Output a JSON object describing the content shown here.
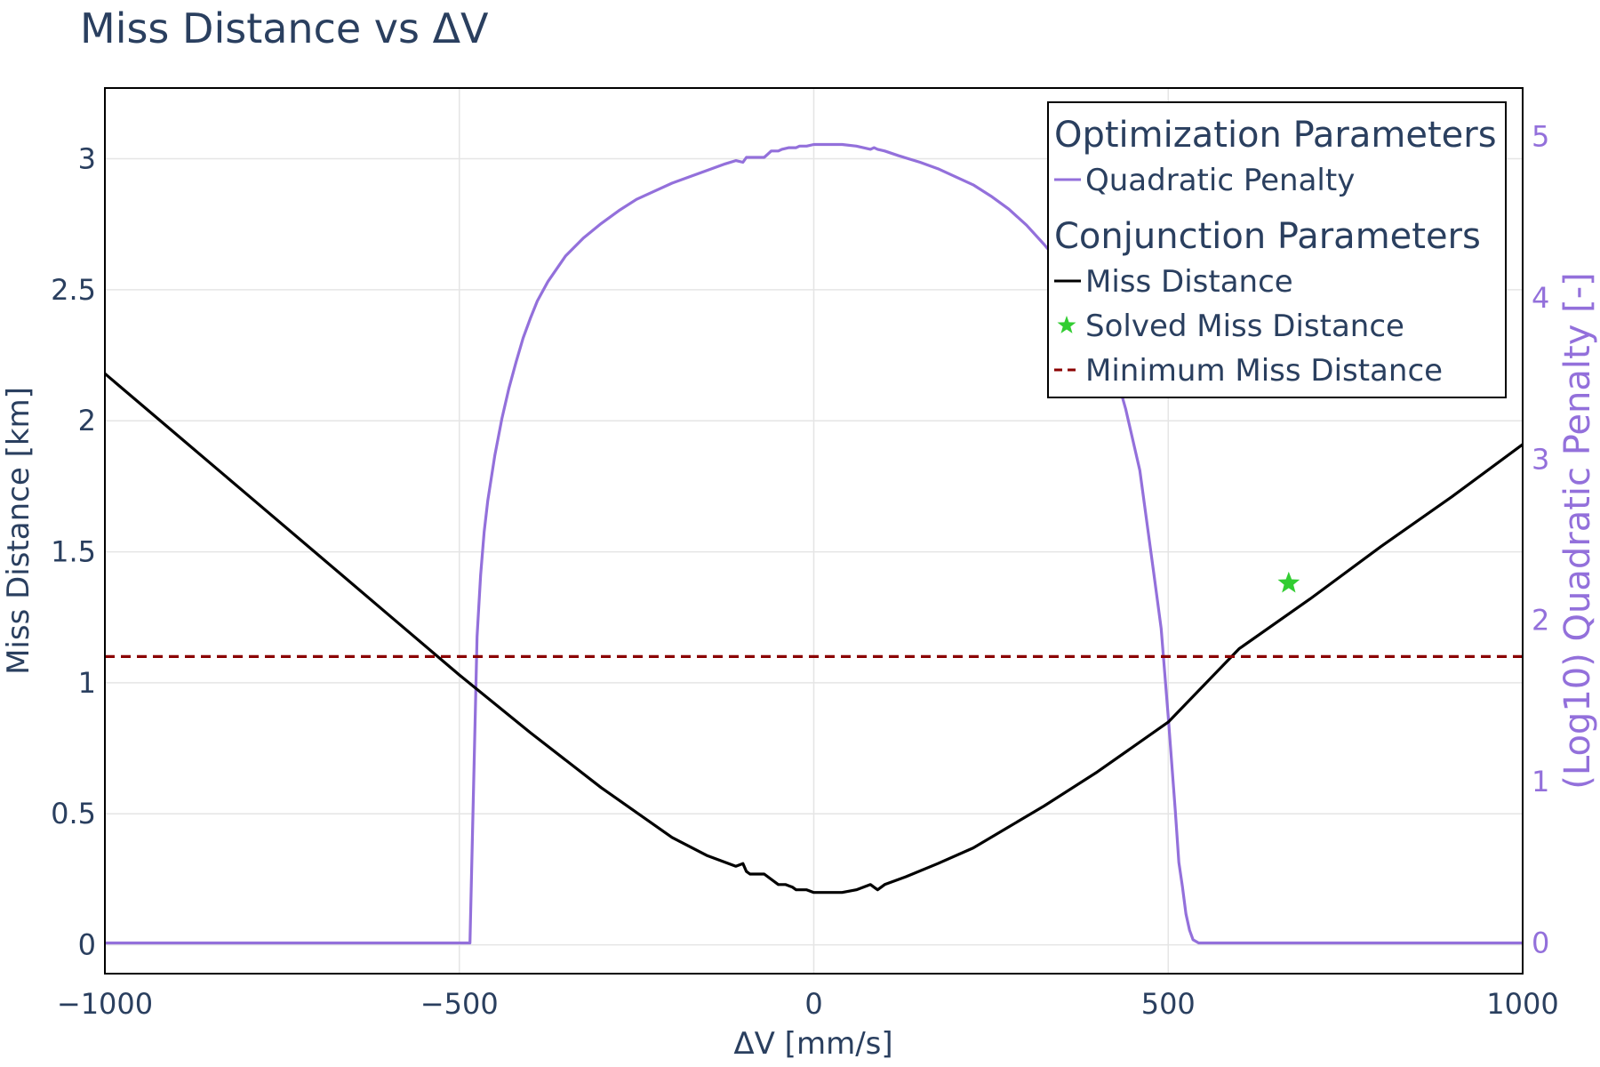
{
  "chart_data": {
    "type": "line",
    "title": "Miss Distance vs ΔV",
    "xlabel": "ΔV [mm/s]",
    "ylabel": "Miss Distance [km]",
    "y2label": "(Log10) Quadratic Penalty [-]",
    "xlim": [
      -1000,
      1000
    ],
    "ylim": [
      -0.11,
      3.27
    ],
    "y2lim": [
      -0.19,
      5.3
    ],
    "grid": true,
    "legend_position": "top-right",
    "x_ticks": [
      -1000,
      -500,
      0,
      500,
      1000
    ],
    "x_tick_labels": [
      "−1000",
      "−500",
      "0",
      "500",
      "1000"
    ],
    "y_ticks": [
      0,
      0.5,
      1,
      1.5,
      2,
      2.5,
      3
    ],
    "y_tick_labels": [
      "0",
      "0.5",
      "1",
      "1.5",
      "2",
      "2.5",
      "3"
    ],
    "y2_ticks": [
      0,
      1,
      2,
      3,
      4,
      5
    ],
    "y2_tick_labels": [
      "0",
      "1",
      "2",
      "3",
      "4",
      "5"
    ],
    "legend": {
      "groups": [
        {
          "title": "Optimization Parameters",
          "items": [
            {
              "label": "Quadratic Penalty",
              "symbol": "line",
              "color": "#9370DB"
            }
          ]
        },
        {
          "title": "Conjunction Parameters",
          "items": [
            {
              "label": "Miss Distance",
              "symbol": "line",
              "color": "#000000"
            },
            {
              "label": "Solved Miss Distance",
              "symbol": "star",
              "color": "#32CD32"
            },
            {
              "label": "Minimum Miss Distance",
              "symbol": "dash",
              "color": "#8B0000"
            }
          ]
        }
      ]
    },
    "series": [
      {
        "name": "Quadratic Penalty",
        "axis": "y2",
        "color": "#9370DB",
        "x": [
          -1000,
          -485,
          -480,
          -475,
          -470,
          -465,
          -460,
          -450,
          -440,
          -430,
          -420,
          -410,
          -400,
          -390,
          -375,
          -350,
          -325,
          -300,
          -275,
          -250,
          -225,
          -200,
          -175,
          -150,
          -125,
          -110,
          -100,
          -95,
          -90,
          -70,
          -65,
          -60,
          -50,
          -45,
          -35,
          -25,
          -20,
          -10,
          0,
          20,
          40,
          60,
          80,
          85,
          90,
          100,
          120,
          150,
          175,
          200,
          225,
          250,
          275,
          300,
          325,
          350,
          375,
          400,
          420,
          440,
          460,
          480,
          490,
          500,
          510,
          515,
          520,
          525,
          530,
          535,
          543,
          1000
        ],
        "y": [
          0,
          0,
          0.95,
          1.9,
          2.28,
          2.55,
          2.74,
          3.02,
          3.25,
          3.44,
          3.6,
          3.75,
          3.87,
          3.98,
          4.1,
          4.26,
          4.37,
          4.46,
          4.54,
          4.61,
          4.66,
          4.71,
          4.75,
          4.79,
          4.83,
          4.85,
          4.84,
          4.87,
          4.87,
          4.87,
          4.89,
          4.91,
          4.91,
          4.92,
          4.93,
          4.93,
          4.94,
          4.94,
          4.95,
          4.95,
          4.95,
          4.94,
          4.92,
          4.93,
          4.92,
          4.91,
          4.88,
          4.84,
          4.8,
          4.75,
          4.7,
          4.63,
          4.55,
          4.45,
          4.33,
          4.2,
          4.05,
          3.85,
          3.62,
          3.31,
          2.93,
          2.28,
          1.95,
          1.4,
          0.82,
          0.5,
          0.35,
          0.18,
          0.08,
          0.02,
          0,
          0
        ]
      },
      {
        "name": "Miss Distance",
        "axis": "y",
        "color": "#000000",
        "x": [
          -1000,
          -900,
          -800,
          -700,
          -600,
          -500,
          -400,
          -300,
          -200,
          -150,
          -110,
          -100,
          -95,
          -90,
          -70,
          -60,
          -50,
          -40,
          -30,
          -25,
          -20,
          -10,
          0,
          20,
          40,
          60,
          70,
          80,
          85,
          90,
          100,
          130,
          175,
          225,
          275,
          325,
          400,
          500,
          600,
          700,
          800,
          900,
          1000
        ],
        "y": [
          2.18,
          1.95,
          1.72,
          1.49,
          1.26,
          1.03,
          0.81,
          0.6,
          0.41,
          0.34,
          0.3,
          0.31,
          0.28,
          0.27,
          0.27,
          0.25,
          0.23,
          0.23,
          0.22,
          0.21,
          0.21,
          0.21,
          0.2,
          0.2,
          0.2,
          0.21,
          0.22,
          0.23,
          0.22,
          0.21,
          0.23,
          0.26,
          0.31,
          0.37,
          0.45,
          0.53,
          0.66,
          0.85,
          1.13,
          1.32,
          1.52,
          1.71,
          1.91
        ]
      },
      {
        "name": "Solved Miss Distance",
        "axis": "y",
        "color": "#32CD32",
        "x": [
          670
        ],
        "y": [
          1.38
        ]
      },
      {
        "name": "Minimum Miss Distance",
        "axis": "y",
        "color": "#8B0000",
        "x": [
          -1000,
          1000
        ],
        "y": [
          1.1,
          1.1
        ]
      }
    ]
  }
}
